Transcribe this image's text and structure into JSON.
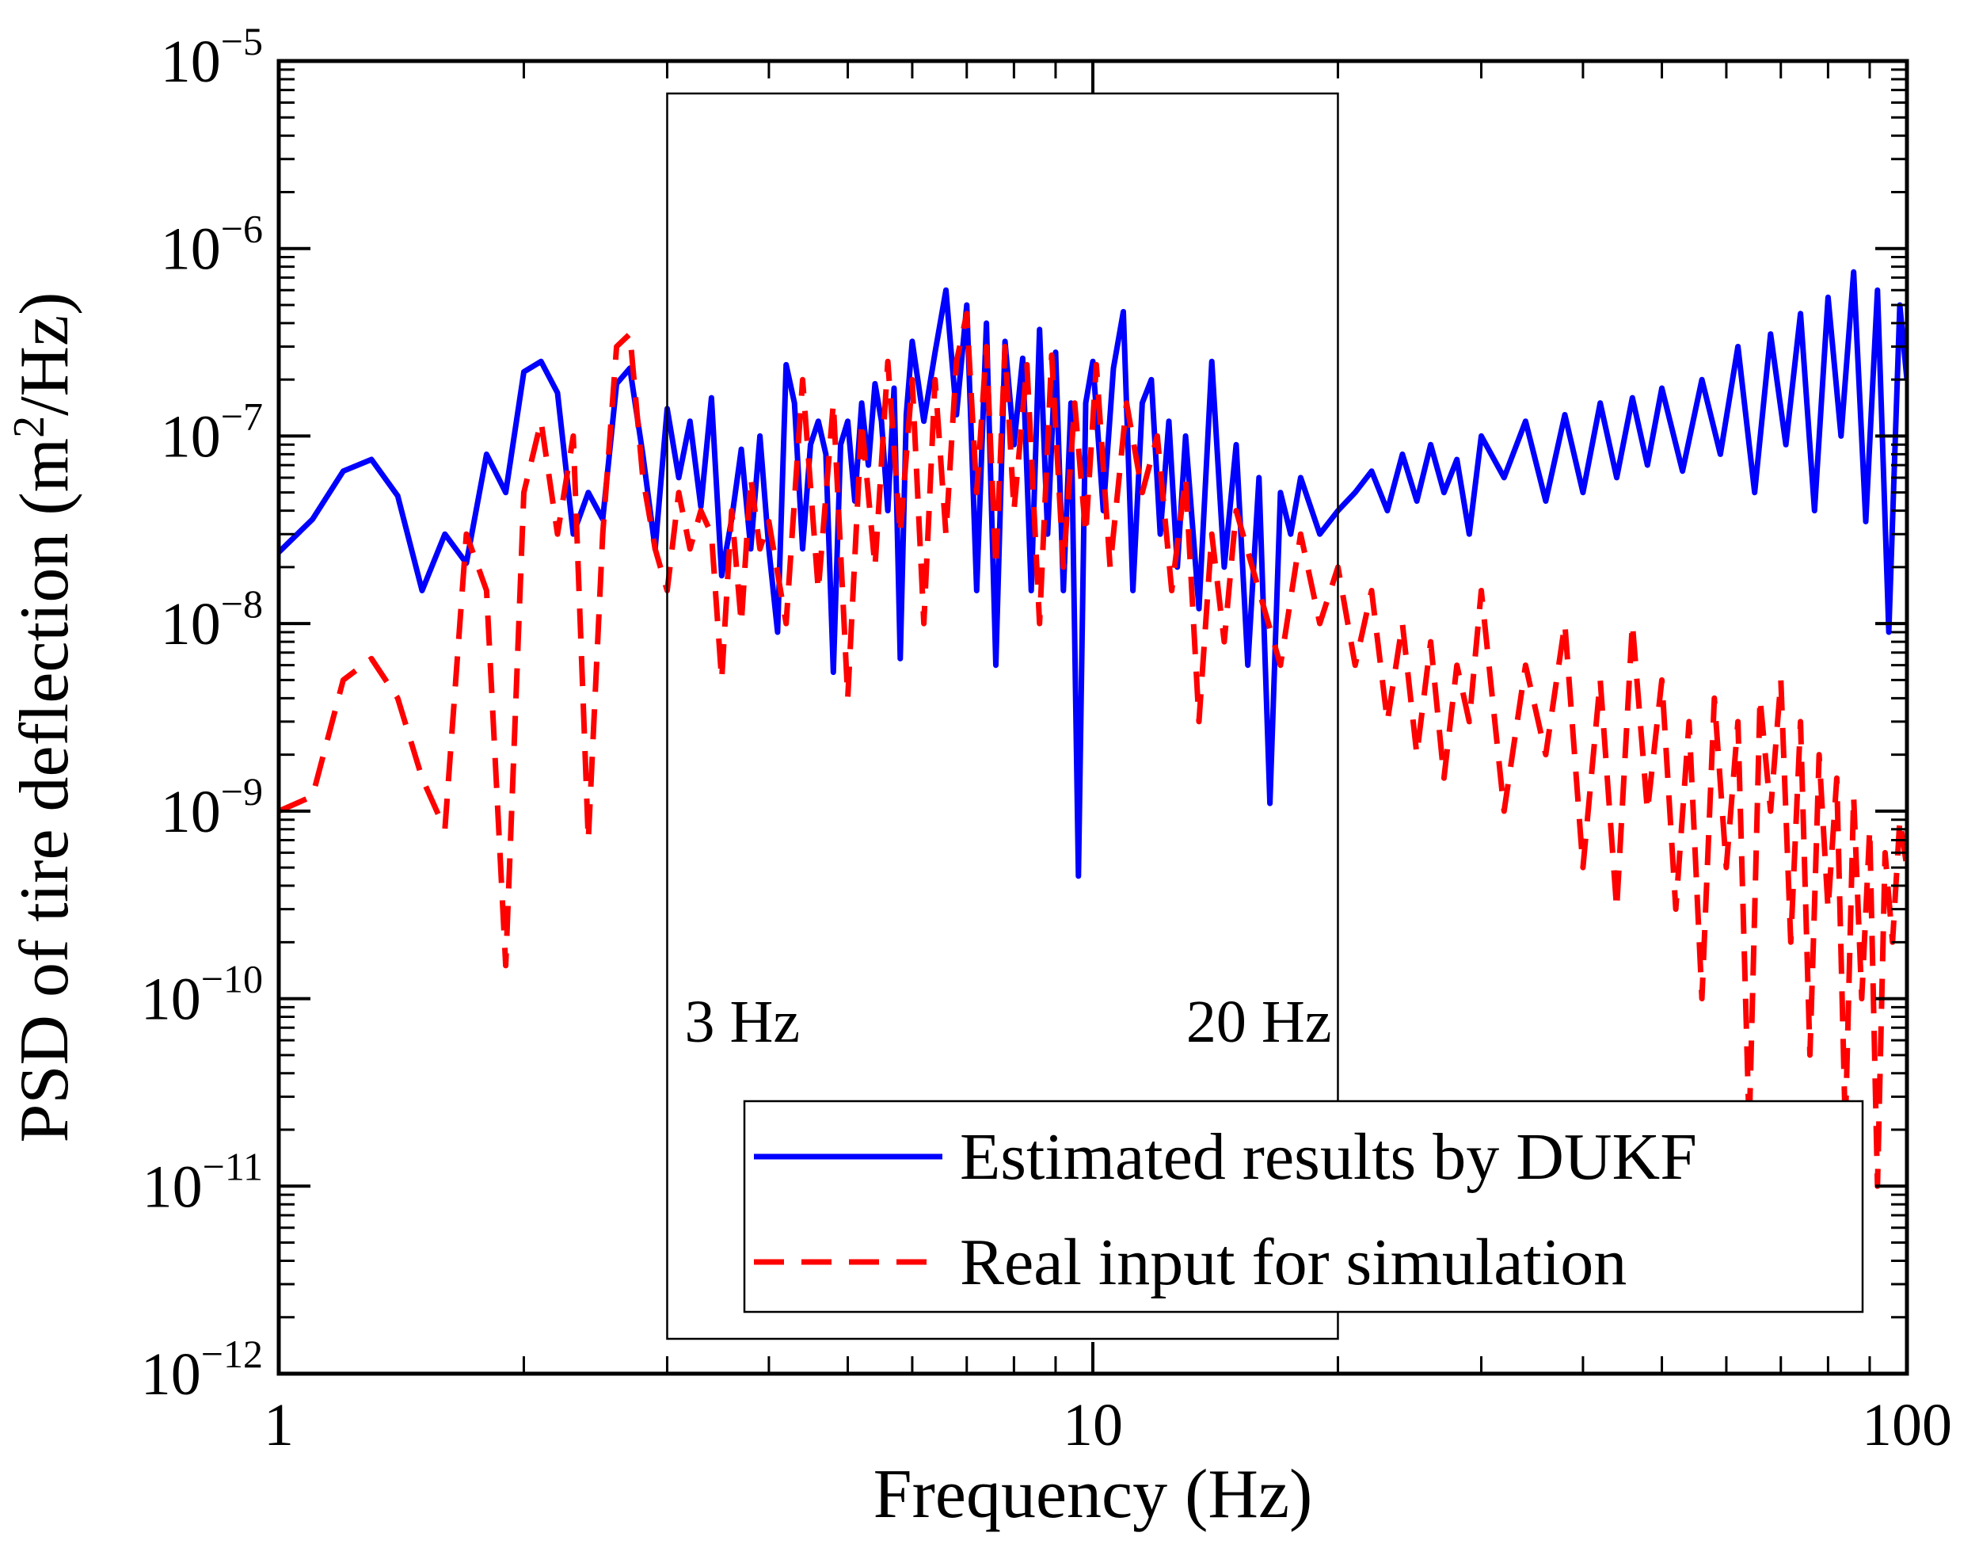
{
  "chart_data": {
    "type": "line",
    "xlabel": "Frequency (Hz)",
    "ylabel_prefix": "PSD of tire deflection (m",
    "ylabel_sup": "2",
    "ylabel_suffix": "/Hz)",
    "x_scale": "log",
    "y_scale": "log",
    "xlim": [
      1,
      100
    ],
    "ylim": [
      1e-12,
      1e-05
    ],
    "x_ticks": [
      {
        "value": 1,
        "label": "1"
      },
      {
        "value": 10,
        "label": "10"
      },
      {
        "value": 100,
        "label": "100"
      }
    ],
    "y_ticks": [
      {
        "exp": -12,
        "base": "10",
        "sup": "−12"
      },
      {
        "exp": -11,
        "base": "10",
        "sup": "−11"
      },
      {
        "exp": -10,
        "base": "10",
        "sup": "−10"
      },
      {
        "exp": -9,
        "base": "10",
        "sup": "−9"
      },
      {
        "exp": -8,
        "base": "10",
        "sup": "−8"
      },
      {
        "exp": -7,
        "base": "10",
        "sup": "−7"
      },
      {
        "exp": -6,
        "base": "10",
        "sup": "−6"
      },
      {
        "exp": -5,
        "base": "10",
        "sup": "−5"
      }
    ],
    "grid": false,
    "legend_position": "bottom-right",
    "annotations": {
      "box_x_range": [
        3,
        20
      ],
      "label_left": "3 Hz",
      "label_right": "20 Hz"
    },
    "series": [
      {
        "name": "Estimated results by DUKF",
        "color": "#0000ff",
        "style": "solid",
        "x": [
          1.0,
          1.1,
          1.2,
          1.3,
          1.4,
          1.5,
          1.6,
          1.7,
          1.8,
          1.9,
          2.0,
          2.1,
          2.2,
          2.3,
          2.4,
          2.5,
          2.6,
          2.7,
          2.8,
          2.9,
          3.0,
          3.1,
          3.2,
          3.3,
          3.4,
          3.5,
          3.6,
          3.7,
          3.8,
          3.9,
          4.0,
          4.1,
          4.2,
          4.3,
          4.4,
          4.5,
          4.6,
          4.7,
          4.8,
          4.9,
          5.0,
          5.1,
          5.2,
          5.3,
          5.4,
          5.5,
          5.6,
          5.7,
          5.8,
          5.9,
          6.0,
          6.2,
          6.4,
          6.6,
          6.8,
          7.0,
          7.2,
          7.4,
          7.6,
          7.8,
          8.0,
          8.2,
          8.4,
          8.6,
          8.8,
          9.0,
          9.2,
          9.4,
          9.6,
          9.8,
          10.0,
          10.3,
          10.6,
          10.9,
          11.2,
          11.5,
          11.8,
          12.1,
          12.4,
          12.7,
          13.0,
          13.5,
          14.0,
          14.5,
          15.0,
          15.5,
          16.0,
          16.5,
          17.0,
          17.5,
          18.0,
          19.0,
          20.0,
          21.0,
          22.0,
          23.0,
          24.0,
          25.0,
          26.0,
          27.0,
          28.0,
          29.0,
          30.0,
          32.0,
          34.0,
          36.0,
          38.0,
          40.0,
          42.0,
          44.0,
          46.0,
          48.0,
          50.0,
          53.0,
          56.0,
          59.0,
          62.0,
          65.0,
          68.0,
          71.0,
          74.0,
          77.0,
          80.0,
          83.0,
          86.0,
          89.0,
          92.0,
          95.0,
          98.0,
          100.0
        ],
        "y": [
          2.4e-08,
          3.6e-08,
          6.5e-08,
          7.5e-08,
          4.8e-08,
          1.5e-08,
          3e-08,
          2.1e-08,
          8e-08,
          5e-08,
          2.2e-07,
          2.5e-07,
          1.7e-07,
          3e-08,
          5e-08,
          3.6e-08,
          1.9e-07,
          2.3e-07,
          8e-08,
          2.5e-08,
          1.4e-07,
          6e-08,
          1.2e-07,
          4.2e-08,
          1.6e-07,
          1.8e-08,
          3.6e-08,
          8.5e-08,
          2.5e-08,
          1e-07,
          2.5e-08,
          9e-09,
          2.4e-07,
          1.5e-07,
          2.5e-08,
          9e-08,
          1.2e-07,
          8e-08,
          5.5e-09,
          9e-08,
          1.2e-07,
          4.5e-08,
          1.5e-07,
          7e-08,
          1.9e-07,
          1.2e-07,
          4e-08,
          1.8e-07,
          6.5e-09,
          1.3e-07,
          3.2e-07,
          1.2e-07,
          2.8e-07,
          6e-07,
          1.3e-07,
          5e-07,
          1.5e-08,
          4e-07,
          6e-09,
          3.2e-07,
          9e-08,
          2.6e-07,
          1.5e-08,
          3.7e-07,
          3e-08,
          2.8e-07,
          1.5e-08,
          1.5e-07,
          4.5e-10,
          1.5e-07,
          2.5e-07,
          4e-08,
          2.3e-07,
          4.6e-07,
          1.5e-08,
          1.5e-07,
          2e-07,
          3e-08,
          1.2e-07,
          2e-08,
          1e-07,
          1.2e-08,
          2.5e-07,
          2e-08,
          9e-08,
          6e-09,
          6e-08,
          1.1e-09,
          5e-08,
          3e-08,
          6e-08,
          3e-08,
          4e-08,
          5e-08,
          6.5e-08,
          4e-08,
          8e-08,
          4.5e-08,
          9e-08,
          5e-08,
          7.5e-08,
          3e-08,
          1e-07,
          6e-08,
          1.2e-07,
          4.5e-08,
          1.3e-07,
          5e-08,
          1.5e-07,
          6e-08,
          1.6e-07,
          7e-08,
          1.8e-07,
          6.5e-08,
          2e-07,
          8e-08,
          3e-07,
          5e-08,
          3.5e-07,
          9e-08,
          4.5e-07,
          4e-08,
          5.5e-07,
          1e-07,
          7.5e-07,
          3.5e-08,
          6e-07,
          9e-09,
          5e-07,
          2e-07
        ]
      },
      {
        "name": "Real input for simulation",
        "color": "#ff0000",
        "style": "dashed",
        "x": [
          1.0,
          1.1,
          1.2,
          1.3,
          1.4,
          1.5,
          1.6,
          1.7,
          1.8,
          1.9,
          2.0,
          2.1,
          2.2,
          2.3,
          2.4,
          2.5,
          2.6,
          2.7,
          2.8,
          2.9,
          3.0,
          3.1,
          3.2,
          3.3,
          3.4,
          3.5,
          3.6,
          3.7,
          3.8,
          3.9,
          4.0,
          4.2,
          4.4,
          4.6,
          4.8,
          5.0,
          5.2,
          5.4,
          5.6,
          5.8,
          6.0,
          6.2,
          6.4,
          6.6,
          6.8,
          7.0,
          7.2,
          7.4,
          7.6,
          7.8,
          8.0,
          8.3,
          8.6,
          8.9,
          9.2,
          9.5,
          9.8,
          10.1,
          10.5,
          11.0,
          11.5,
          12.0,
          12.5,
          13.0,
          13.5,
          14.0,
          14.5,
          15.0,
          16.0,
          17.0,
          18.0,
          19.0,
          20.0,
          21.0,
          22.0,
          23.0,
          24.0,
          25.0,
          26.0,
          27.0,
          28.0,
          29.0,
          30.0,
          32.0,
          34.0,
          36.0,
          38.0,
          40.0,
          42.0,
          44.0,
          46.0,
          48.0,
          50.0,
          52.0,
          54.0,
          56.0,
          58.0,
          60.0,
          62.0,
          64.0,
          66.0,
          68.0,
          70.0,
          72.0,
          74.0,
          76.0,
          78.0,
          80.0,
          82.0,
          84.0,
          86.0,
          88.0,
          90.0,
          92.0,
          94.0,
          96.0,
          98.0,
          100.0
        ],
        "y": [
          1e-09,
          1.2e-09,
          5e-09,
          6.5e-09,
          4e-09,
          1.5e-09,
          8e-10,
          3e-08,
          1.5e-08,
          1.5e-10,
          5e-08,
          1.2e-07,
          3e-08,
          1e-07,
          7e-10,
          3e-08,
          3e-07,
          3.5e-07,
          6e-08,
          2.5e-08,
          1.5e-08,
          5e-08,
          2.5e-08,
          4e-08,
          3e-08,
          5e-09,
          4e-08,
          1e-08,
          6e-08,
          2.5e-08,
          3.5e-08,
          1e-08,
          2e-07,
          1.5e-08,
          1.5e-07,
          4e-09,
          1.2e-07,
          2e-08,
          2.5e-07,
          3e-08,
          2e-07,
          1e-08,
          2e-07,
          3e-08,
          2.5e-07,
          4.5e-07,
          5e-08,
          3e-07,
          2e-08,
          3e-07,
          4e-08,
          2.4e-07,
          1e-08,
          2.7e-07,
          2e-08,
          1.5e-07,
          3e-08,
          2.4e-07,
          2e-08,
          1.5e-07,
          5e-08,
          1e-07,
          1.5e-08,
          6e-08,
          3e-09,
          3e-08,
          8e-09,
          4e-08,
          1.5e-08,
          6e-09,
          3e-08,
          1e-08,
          2e-08,
          6e-09,
          1.5e-08,
          3e-09,
          1e-08,
          2e-09,
          8e-09,
          1.5e-09,
          6e-09,
          3e-09,
          1.5e-08,
          1e-09,
          6e-09,
          2e-09,
          1e-08,
          5e-10,
          5e-09,
          3e-10,
          1e-08,
          1e-09,
          5e-09,
          3e-10,
          3e-09,
          1e-10,
          4e-09,
          5e-10,
          3e-09,
          2e-11,
          4e-09,
          1e-09,
          5e-09,
          2e-10,
          3e-09,
          5e-11,
          2e-09,
          3e-10,
          1.5e-09,
          2e-11,
          1.2e-09,
          1e-10,
          8e-10,
          1e-11,
          6e-10,
          2e-10,
          9e-10,
          5e-10
        ]
      }
    ]
  }
}
